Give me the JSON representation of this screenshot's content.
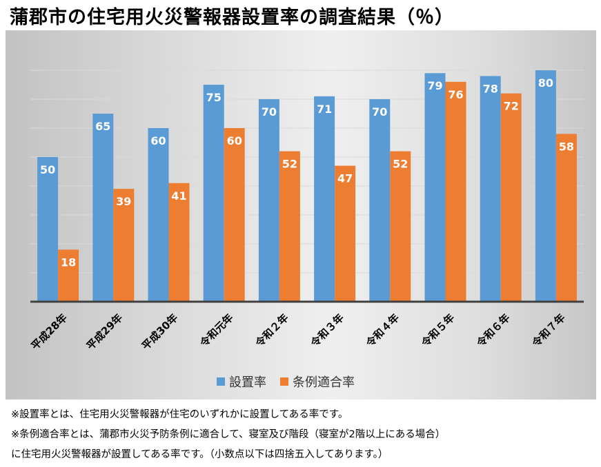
{
  "title": "蒲郡市の住宅用火災警報器設置率の調査結果（％）",
  "colors": {
    "series1": "#5b9bd5",
    "series2": "#ed7d31",
    "axis": "#404040",
    "grid": "#d9d9d9"
  },
  "chart_data": {
    "type": "bar",
    "categories": [
      "平成28年",
      "平成29年",
      "平成30年",
      "令和元年",
      "令和２年",
      "令和３年",
      "令和４年",
      "令和５年",
      "令和６年",
      "令和７年"
    ],
    "series": [
      {
        "name": "設置率",
        "values": [
          50,
          65,
          60,
          75,
          70,
          71,
          70,
          79,
          78,
          80
        ]
      },
      {
        "name": "条例適合率",
        "values": [
          18,
          39,
          41,
          60,
          52,
          47,
          52,
          76,
          72,
          58
        ]
      }
    ],
    "ylim": [
      0,
      80
    ],
    "grid": true,
    "data_labels": true,
    "legend_position": "bottom"
  },
  "notes": [
    "※設置率とは、住宅用火災警報器が住宅のいずれかに設置してある率です。",
    "※条例適合率とは、蒲郡市火災予防条例に適合して、寝室及び階段（寝室が2階以上にある場合）",
    "に住宅用火災警報器が設置してある率です。（小数点以下は四捨五入してあります。）"
  ]
}
